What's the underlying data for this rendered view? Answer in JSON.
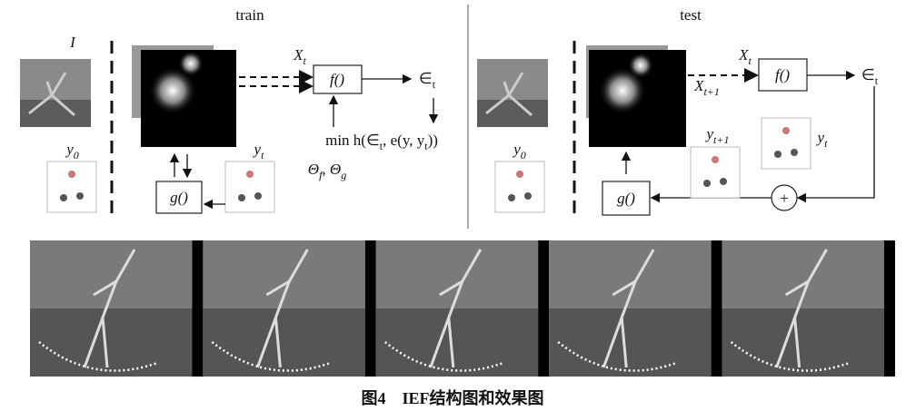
{
  "train": {
    "title": "train",
    "image_label": [
      {
        "text": "I"
      }
    ],
    "y0_label": [
      {
        "text": "y",
        "sub": "0"
      }
    ],
    "xt_label": [
      {
        "text": "X",
        "sub": "t"
      }
    ],
    "f_box": [
      {
        "text": "f()"
      }
    ],
    "eps_label": [
      {
        "text": "∈",
        "sub": "t"
      }
    ],
    "loss_label": [
      {
        "text": "min h(∈",
        "sub": "t"
      },
      {
        "text": ", e(y, y",
        "sub": "t"
      },
      {
        "text": "))"
      }
    ],
    "params_label": [
      {
        "text": "Θ",
        "sub": "f"
      },
      {
        "text": ", Θ",
        "sub": "g"
      }
    ],
    "yt_label": [
      {
        "text": "y",
        "sub": "t"
      }
    ],
    "g_box": [
      {
        "text": "g()"
      }
    ]
  },
  "test": {
    "title": "test",
    "y0_label": [
      {
        "text": "y",
        "sub": "0"
      }
    ],
    "xt_label": [
      {
        "text": "X",
        "sub": "t"
      }
    ],
    "xt1_label": [
      {
        "text": "X",
        "sub": "t+1"
      }
    ],
    "f_box": [
      {
        "text": "f()"
      }
    ],
    "eps_label": [
      {
        "text": "∈",
        "sub": "t"
      }
    ],
    "yt1_label": [
      {
        "text": "y",
        "sub": "t+1"
      }
    ],
    "yt_label": [
      {
        "text": "y",
        "sub": "t"
      }
    ],
    "plus": "+",
    "g_box": [
      {
        "text": "g()"
      }
    ]
  },
  "caption": "图4　IEF结构图和效果图"
}
